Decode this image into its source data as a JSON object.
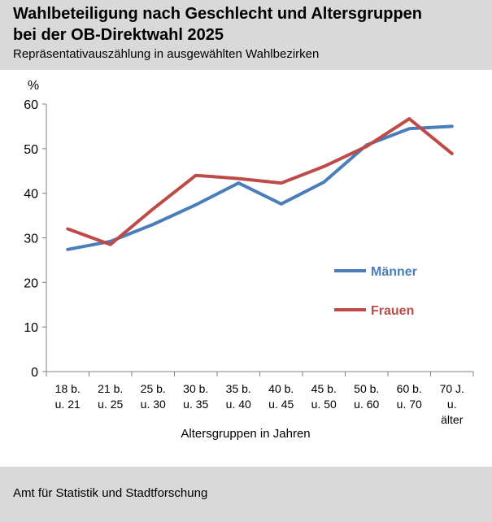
{
  "header": {
    "title_line1": "Wahlbeteiligung nach Geschlecht und Altersgruppen",
    "title_line2": "bei der OB-Direktwahl 2025",
    "subtitle": "Repräsentativauszählung in ausgewählten Wahlbezirken"
  },
  "footer": {
    "source": "Amt für Statistik und Stadtforschung"
  },
  "chart_data": {
    "type": "line",
    "title": "Wahlbeteiligung nach Geschlecht und Altersgruppen bei der OB-Direktwahl 2025",
    "subtitle": "Repräsentativauszählung in ausgewählten Wahlbezirken",
    "xlabel": "Altersgruppen in Jahren",
    "ylabel": "%",
    "ylim": [
      0,
      60
    ],
    "yticks": [
      0,
      10,
      20,
      30,
      40,
      50,
      60
    ],
    "grid": false,
    "legend": "right",
    "categories": [
      [
        "18 b.",
        "u. 21"
      ],
      [
        "21 b.",
        "u. 25"
      ],
      [
        "25 b.",
        "u. 30"
      ],
      [
        "30 b.",
        "u. 35"
      ],
      [
        "35 b.",
        "u. 40"
      ],
      [
        "40 b.",
        "u. 45"
      ],
      [
        "45 b.",
        "u. 50"
      ],
      [
        "50 b.",
        "u. 60"
      ],
      [
        "60 b.",
        "u. 70"
      ],
      [
        "70 J.",
        "u.",
        "älter"
      ]
    ],
    "series": [
      {
        "name": "Männer",
        "color": "#4a7ebb",
        "values": [
          27.4,
          29.2,
          33.0,
          37.4,
          42.3,
          37.6,
          42.5,
          50.8,
          54.5,
          55.0
        ]
      },
      {
        "name": "Frauen",
        "color": "#be4b48",
        "values": [
          32.0,
          28.5,
          36.5,
          44.0,
          43.3,
          42.3,
          46.0,
          50.5,
          56.7,
          48.9
        ]
      }
    ]
  }
}
